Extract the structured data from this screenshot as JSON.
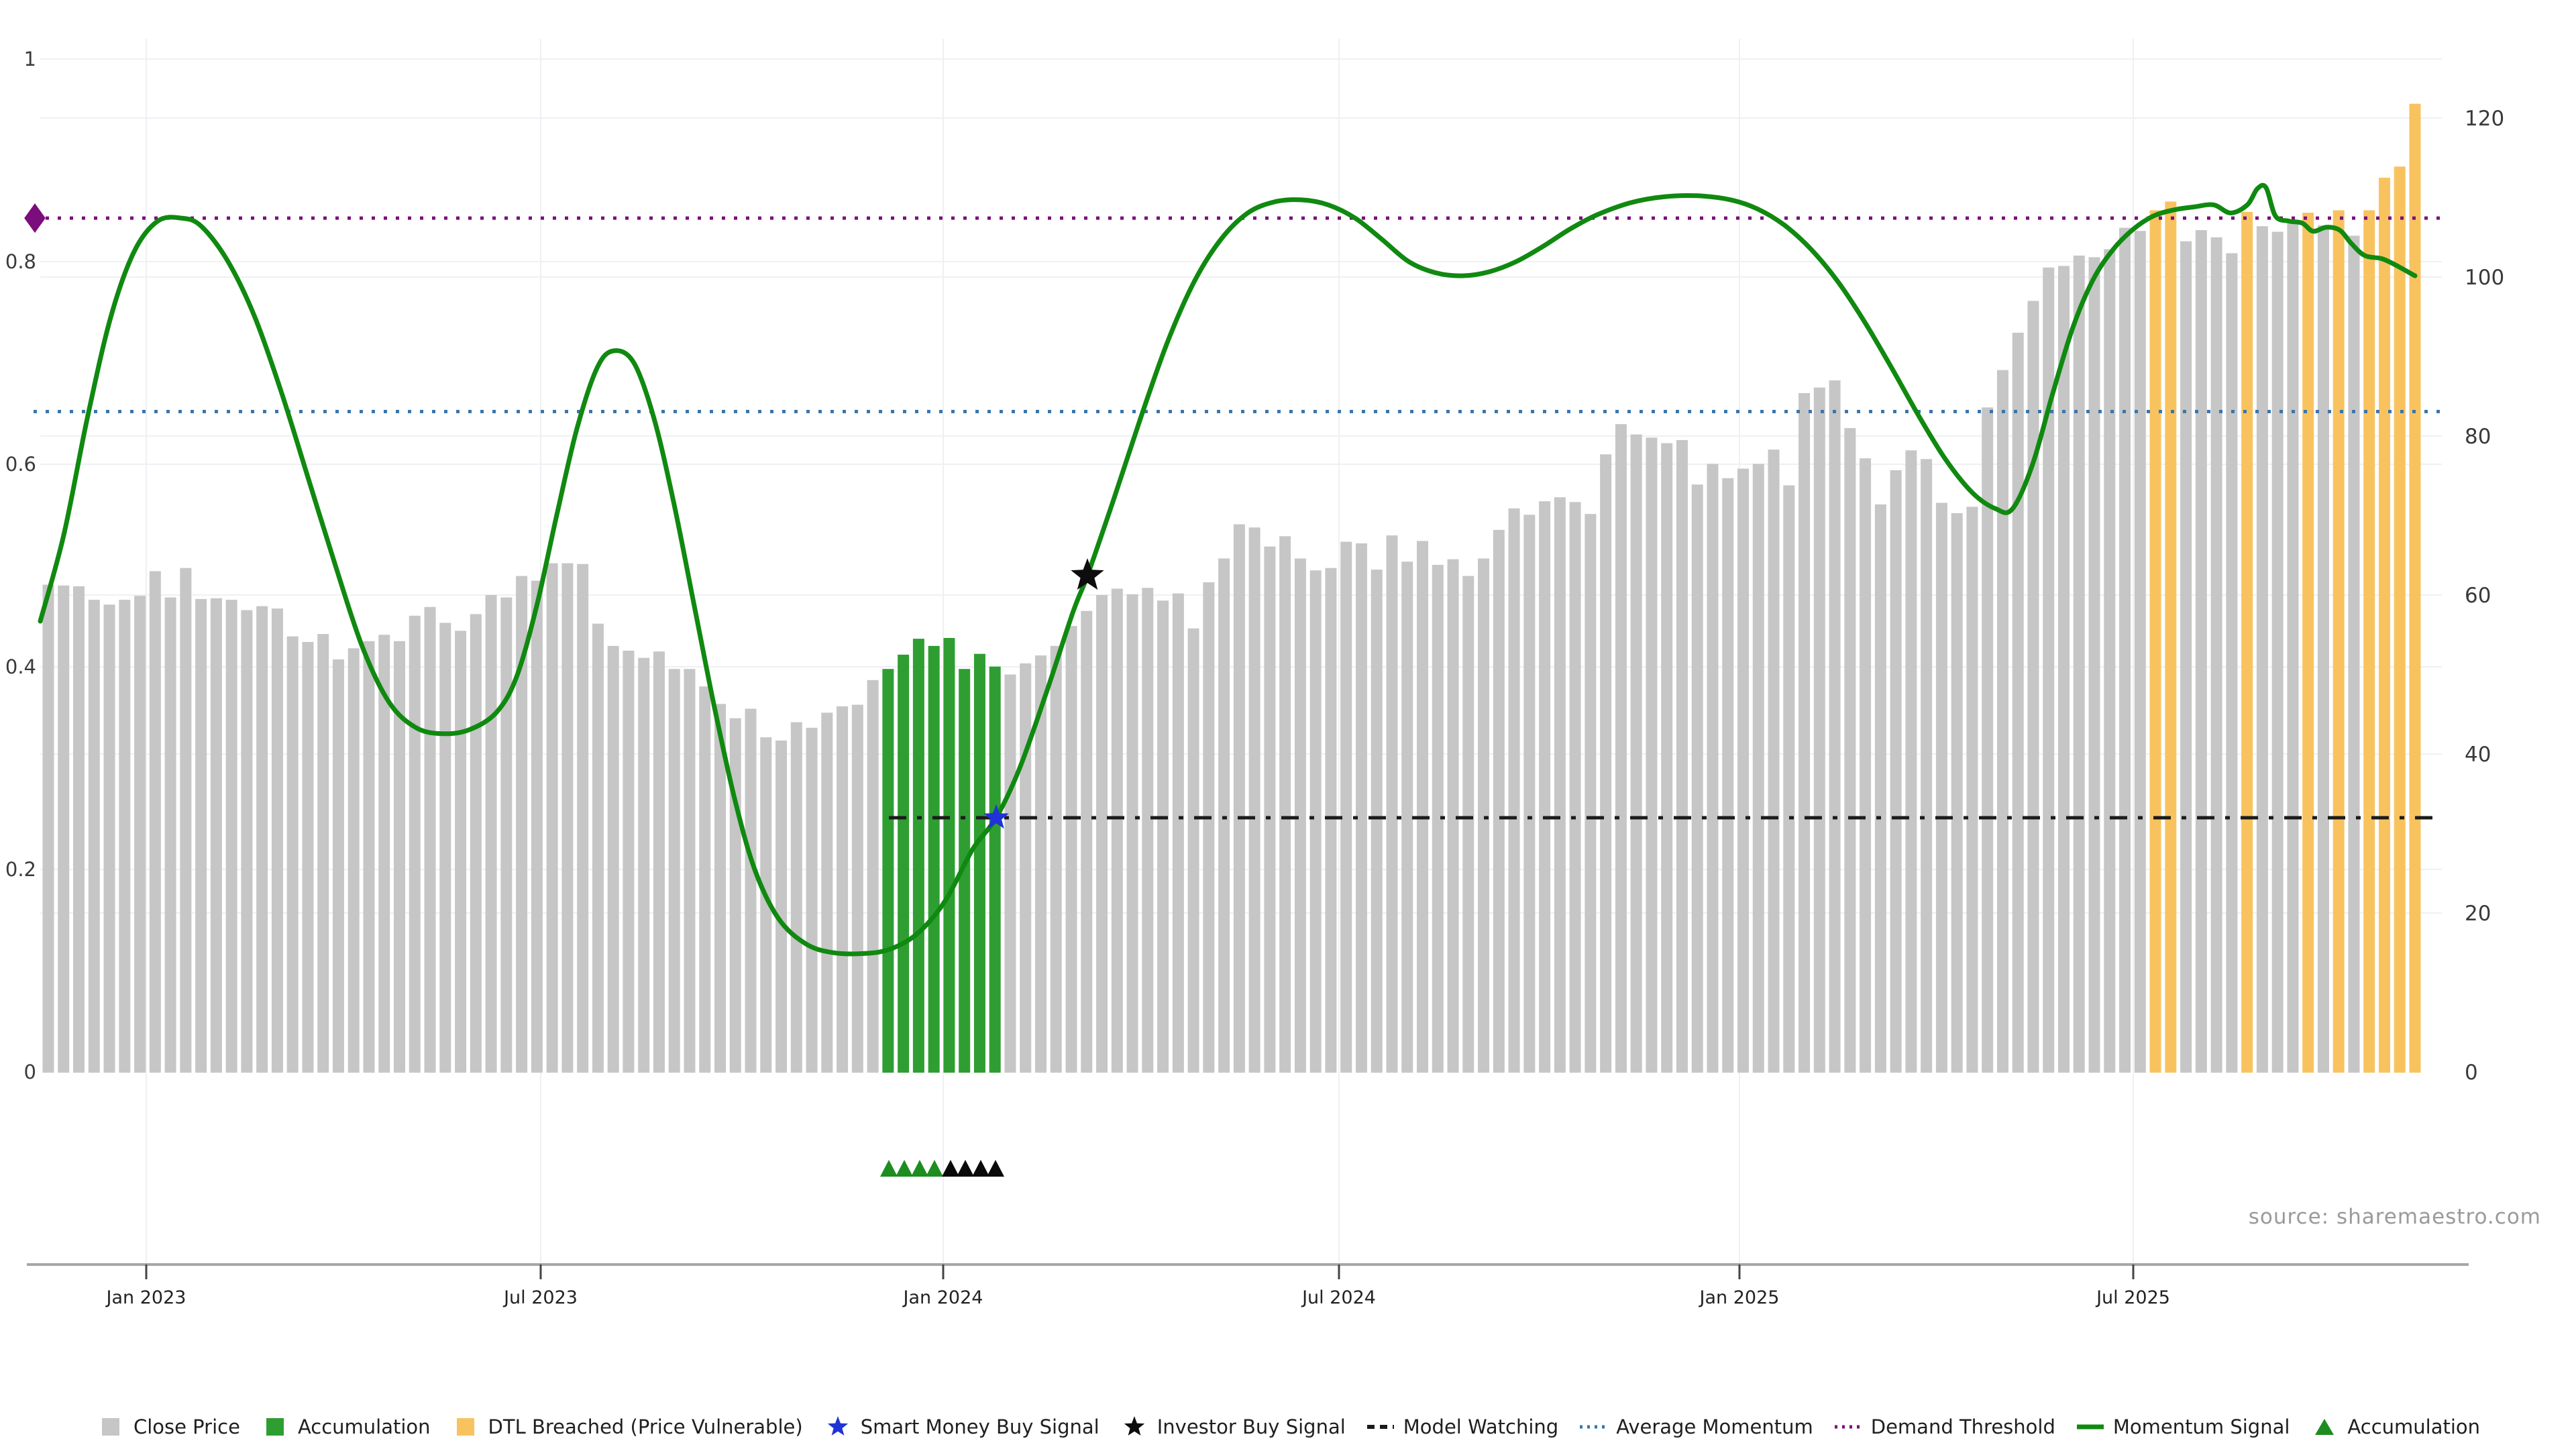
{
  "source_note": "source: sharemaestro.com",
  "colors": {
    "close_price": "#c6c6c6",
    "accumulation_bar": "#2f9e32",
    "dtl_breached": "#f8c35f",
    "momentum_signal": "#108910",
    "average_momentum": "#3a76ab",
    "demand_threshold": "#7c0d7c",
    "model_watching": "#1b1b1b",
    "smart_money_star": "#2033d6",
    "investor_star": "#0d0d0d",
    "triangle_green": "#1d8d20",
    "triangle_black": "#0a0a0a",
    "grid": "#eef0f3",
    "axis_spine": "#a6a6a6",
    "tick_label": "#3a3a3a",
    "x_tick_label": "#222222"
  },
  "axes": {
    "left_ticks": [
      {
        "label": "0",
        "value": 0
      },
      {
        "label": "0.2",
        "value": 0.2
      },
      {
        "label": "0.4",
        "value": 0.4
      },
      {
        "label": "0.6",
        "value": 0.6
      },
      {
        "label": "0.8",
        "value": 0.8
      },
      {
        "label": "1",
        "value": 1
      }
    ],
    "right_ticks": [
      {
        "label": "0",
        "value": 0
      },
      {
        "label": "20",
        "value": 20
      },
      {
        "label": "40",
        "value": 40
      },
      {
        "label": "60",
        "value": 60
      },
      {
        "label": "80",
        "value": 80
      },
      {
        "label": "100",
        "value": 100
      },
      {
        "label": "120",
        "value": 120
      }
    ],
    "x_ticks": [
      {
        "label": "Jan 2023",
        "x": 218
      },
      {
        "label": "Jul 2023",
        "x": 806
      },
      {
        "label": "Jan 2024",
        "x": 1406
      },
      {
        "label": "Jul 2024",
        "x": 1996
      },
      {
        "label": "Jan 2025",
        "x": 2593
      },
      {
        "label": "Jul 2025",
        "x": 3180
      }
    ]
  },
  "chart_data": {
    "type": "combo: weekly close-price bars (right axis 0-120) + momentum signal line (left axis 0-1)",
    "x_coverage": "weekly bars, Nov 2022 - Nov 2025",
    "close_price_values": [
      61.3,
      61.2,
      61.1,
      59.4,
      58.8,
      59.4,
      59.9,
      63.0,
      59.7,
      63.4,
      59.5,
      59.6,
      59.4,
      58.1,
      58.6,
      58.3,
      54.8,
      54.1,
      55.1,
      51.9,
      53.3,
      54.2,
      55.0,
      54.2,
      57.4,
      58.5,
      56.5,
      55.5,
      57.6,
      60.0,
      59.7,
      62.4,
      61.8,
      64.0,
      64.0,
      63.9,
      56.4,
      53.6,
      53.0,
      52.1,
      52.9,
      50.7,
      50.7,
      48.5,
      46.3,
      44.5,
      45.7,
      42.1,
      41.7,
      44.0,
      43.3,
      45.2,
      46.0,
      46.2,
      49.3,
      50.7,
      52.5,
      54.5,
      53.6,
      54.6,
      50.7,
      52.6,
      51.0,
      50.0,
      51.4,
      52.4,
      53.6,
      56.1,
      58.0,
      60.0,
      60.8,
      60.1,
      60.9,
      59.3,
      60.2,
      55.8,
      61.6,
      64.6,
      68.9,
      68.5,
      66.1,
      67.4,
      64.6,
      63.1,
      63.4,
      66.7,
      66.5,
      63.2,
      67.5,
      64.2,
      66.8,
      63.8,
      64.5,
      62.4,
      64.6,
      68.2,
      70.9,
      70.1,
      71.8,
      72.3,
      71.7,
      70.2,
      77.7,
      81.5,
      80.2,
      79.8,
      79.1,
      79.5,
      73.9,
      76.5,
      74.7,
      75.9,
      76.5,
      78.3,
      73.8,
      85.4,
      86.1,
      87.0,
      81.0,
      77.2,
      71.4,
      75.7,
      78.2,
      77.1,
      71.6,
      70.3,
      71.1,
      83.6,
      88.3,
      93.0,
      97.0,
      101.2,
      101.4,
      102.7,
      102.5,
      103.5,
      106.2,
      105.8,
      108.4,
      109.5,
      104.5,
      105.9,
      105.0,
      103.0,
      108.2,
      106.4,
      105.7,
      107.2,
      108.1,
      106.5,
      108.4,
      105.2,
      108.4,
      112.5,
      113.9,
      121.8
    ],
    "accumulation_bar_indices": [
      55,
      56,
      57,
      58,
      59,
      60,
      61,
      62
    ],
    "dtl_breached_bar_indices": [
      138,
      139,
      144,
      148,
      150,
      152,
      153,
      154,
      155
    ],
    "average_momentum_value": 0.652,
    "demand_threshold_value": 0.843,
    "model_watching": {
      "value": 0.251,
      "x_start": 1325,
      "x_end": 3640
    },
    "smart_money_buy_signal": {
      "x": 1485,
      "value": 0.251
    },
    "investor_buy_signal": {
      "x": 1621,
      "value": 0.49
    },
    "accumulation_triangle_markers": {
      "green_x": [
        1325,
        1348,
        1371,
        1393
      ],
      "black_x": [
        1417,
        1439,
        1462,
        1484
      ]
    },
    "momentum_signal_points": [
      [
        60,
        0.445
      ],
      [
        95,
        0.53
      ],
      [
        130,
        0.645
      ],
      [
        165,
        0.745
      ],
      [
        200,
        0.81
      ],
      [
        235,
        0.84
      ],
      [
        270,
        0.843
      ],
      [
        300,
        0.835
      ],
      [
        340,
        0.8
      ],
      [
        380,
        0.745
      ],
      [
        420,
        0.67
      ],
      [
        460,
        0.585
      ],
      [
        500,
        0.5
      ],
      [
        540,
        0.42
      ],
      [
        580,
        0.365
      ],
      [
        620,
        0.34
      ],
      [
        660,
        0.334
      ],
      [
        700,
        0.338
      ],
      [
        740,
        0.355
      ],
      [
        770,
        0.39
      ],
      [
        800,
        0.46
      ],
      [
        830,
        0.55
      ],
      [
        860,
        0.635
      ],
      [
        890,
        0.695
      ],
      [
        915,
        0.712
      ],
      [
        945,
        0.7
      ],
      [
        975,
        0.645
      ],
      [
        1005,
        0.56
      ],
      [
        1035,
        0.46
      ],
      [
        1065,
        0.36
      ],
      [
        1095,
        0.27
      ],
      [
        1125,
        0.2
      ],
      [
        1160,
        0.152
      ],
      [
        1200,
        0.127
      ],
      [
        1240,
        0.118
      ],
      [
        1290,
        0.117
      ],
      [
        1330,
        0.122
      ],
      [
        1370,
        0.138
      ],
      [
        1410,
        0.17
      ],
      [
        1450,
        0.22
      ],
      [
        1485,
        0.251
      ],
      [
        1520,
        0.3
      ],
      [
        1560,
        0.375
      ],
      [
        1600,
        0.455
      ],
      [
        1621,
        0.49
      ],
      [
        1660,
        0.565
      ],
      [
        1700,
        0.645
      ],
      [
        1740,
        0.72
      ],
      [
        1780,
        0.78
      ],
      [
        1820,
        0.822
      ],
      [
        1860,
        0.848
      ],
      [
        1900,
        0.859
      ],
      [
        1940,
        0.861
      ],
      [
        1980,
        0.856
      ],
      [
        2020,
        0.843
      ],
      [
        2060,
        0.822
      ],
      [
        2100,
        0.8
      ],
      [
        2140,
        0.789
      ],
      [
        2180,
        0.786
      ],
      [
        2220,
        0.79
      ],
      [
        2260,
        0.8
      ],
      [
        2300,
        0.815
      ],
      [
        2340,
        0.832
      ],
      [
        2380,
        0.846
      ],
      [
        2430,
        0.858
      ],
      [
        2480,
        0.864
      ],
      [
        2530,
        0.865
      ],
      [
        2580,
        0.861
      ],
      [
        2620,
        0.852
      ],
      [
        2660,
        0.836
      ],
      [
        2700,
        0.812
      ],
      [
        2740,
        0.78
      ],
      [
        2780,
        0.74
      ],
      [
        2820,
        0.695
      ],
      [
        2860,
        0.648
      ],
      [
        2900,
        0.605
      ],
      [
        2940,
        0.572
      ],
      [
        2975,
        0.556
      ],
      [
        3000,
        0.556
      ],
      [
        3030,
        0.6
      ],
      [
        3060,
        0.67
      ],
      [
        3090,
        0.735
      ],
      [
        3120,
        0.782
      ],
      [
        3150,
        0.812
      ],
      [
        3180,
        0.832
      ],
      [
        3210,
        0.845
      ],
      [
        3240,
        0.851
      ],
      [
        3270,
        0.854
      ],
      [
        3300,
        0.856
      ],
      [
        3325,
        0.848
      ],
      [
        3350,
        0.856
      ],
      [
        3365,
        0.872
      ],
      [
        3378,
        0.873
      ],
      [
        3392,
        0.845
      ],
      [
        3412,
        0.84
      ],
      [
        3432,
        0.838
      ],
      [
        3448,
        0.83
      ],
      [
        3468,
        0.834
      ],
      [
        3488,
        0.831
      ],
      [
        3505,
        0.818
      ],
      [
        3525,
        0.806
      ],
      [
        3550,
        0.803
      ],
      [
        3570,
        0.797
      ],
      [
        3600,
        0.786
      ]
    ]
  },
  "legend": {
    "items": [
      {
        "label": "Close Price",
        "swatch": "square",
        "color_key": "close_price"
      },
      {
        "label": "Accumulation",
        "swatch": "square",
        "color_key": "accumulation_bar"
      },
      {
        "label": "DTL Breached (Price Vulnerable)",
        "swatch": "square",
        "color_key": "dtl_breached"
      },
      {
        "label": "Smart Money Buy Signal",
        "swatch": "star",
        "color_key": "smart_money_star"
      },
      {
        "label": "Investor Buy Signal",
        "swatch": "star",
        "color_key": "investor_star"
      },
      {
        "label": "Model Watching",
        "swatch": "dashed-line",
        "color_key": "model_watching"
      },
      {
        "label": "Average Momentum",
        "swatch": "dotted-line",
        "color_key": "average_momentum"
      },
      {
        "label": "Demand Threshold",
        "swatch": "dotted-line",
        "color_key": "demand_threshold"
      },
      {
        "label": "Momentum Signal",
        "swatch": "solid-line",
        "color_key": "momentum_signal"
      },
      {
        "label": "Accumulation",
        "swatch": "triangle",
        "color_key": "triangle_green"
      }
    ]
  }
}
